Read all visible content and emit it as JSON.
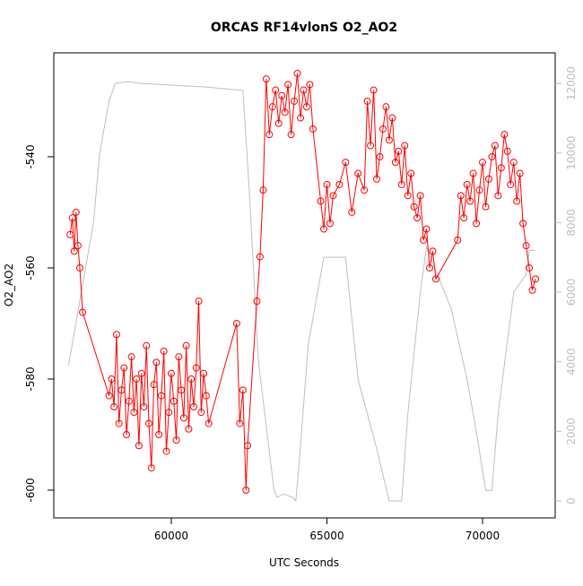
{
  "chart_data": {
    "type": "line",
    "title": "ORCAS RF14vlonS O2_AO2",
    "xlabel": "UTC Seconds",
    "ylabel": "O2_AO2",
    "xlim": [
      56225,
      72334
    ],
    "xticks": [
      60000,
      65000,
      70000
    ],
    "ylim": [
      -605,
      -521.3
    ],
    "yticks": [
      -600,
      -580,
      -560,
      -540
    ],
    "y2lim": [
      -489,
      12876
    ],
    "y2ticks": [
      0,
      2000,
      4000,
      6000,
      8000,
      10000,
      12000
    ],
    "series": [
      {
        "color": "#ff0000",
        "axis": "y",
        "markers": true,
        "x": [
          56750,
          56820,
          56880,
          56940,
          57000,
          57060,
          57150,
          58000,
          58080,
          58160,
          58240,
          58320,
          58400,
          58480,
          58560,
          58640,
          58720,
          58800,
          58880,
          58960,
          59040,
          59120,
          59200,
          59280,
          59360,
          59440,
          59520,
          59600,
          59680,
          59760,
          59840,
          59920,
          60000,
          60080,
          60160,
          60240,
          60320,
          60400,
          60480,
          60560,
          60640,
          60720,
          60800,
          60880,
          60960,
          61040,
          61120,
          61200,
          62100,
          62200,
          62300,
          62400,
          62450,
          62750,
          62850,
          62950,
          63050,
          63150,
          63250,
          63350,
          63450,
          63550,
          63650,
          63750,
          63850,
          63950,
          64050,
          64150,
          64250,
          64350,
          64450,
          64550,
          64800,
          64900,
          65000,
          65100,
          65200,
          65400,
          65600,
          65800,
          66000,
          66200,
          66300,
          66400,
          66500,
          66600,
          66700,
          66800,
          66900,
          67000,
          67100,
          67200,
          67300,
          67400,
          67500,
          67600,
          67700,
          67800,
          67900,
          68000,
          68100,
          68200,
          68300,
          68400,
          68500,
          69200,
          69300,
          69400,
          69500,
          69600,
          69700,
          69800,
          69900,
          70000,
          70100,
          70200,
          70300,
          70400,
          70500,
          70600,
          70700,
          70800,
          70900,
          71000,
          71100,
          71200,
          71300,
          71400,
          71500,
          71600,
          71700
        ],
        "values": [
          -554,
          -551,
          -557,
          -550,
          -556,
          -560,
          -568,
          -583,
          -580,
          -585,
          -572,
          -588,
          -582,
          -578,
          -590,
          -584,
          -576,
          -586,
          -580,
          -592,
          -579,
          -585,
          -574,
          -588,
          -596,
          -581,
          -577,
          -590,
          -583,
          -575,
          -593,
          -586,
          -579,
          -584,
          -591,
          -576,
          -582,
          -587,
          -574,
          -589,
          -580,
          -585,
          -578,
          -566,
          -586,
          -579,
          -583,
          -588,
          -570,
          -588,
          -582,
          -600,
          -592,
          -566,
          -558,
          -546,
          -526,
          -536,
          -531,
          -528,
          -534,
          -529,
          -532,
          -527,
          -536,
          -530,
          -525,
          -533,
          -528,
          -531,
          -527,
          -535,
          -548,
          -553,
          -545,
          -552,
          -547,
          -545,
          -541,
          -550,
          -543,
          -546,
          -530,
          -538,
          -528,
          -544,
          -540,
          -535,
          -531,
          -537,
          -533,
          -541,
          -539,
          -545,
          -538,
          -547,
          -543,
          -549,
          -551,
          -547,
          -555,
          -553,
          -560,
          -557,
          -562,
          -555,
          -547,
          -551,
          -545,
          -548,
          -543,
          -552,
          -546,
          -541,
          -549,
          -544,
          -540,
          -538,
          -547,
          -542,
          -536,
          -539,
          -545,
          -541,
          -548,
          -543,
          -552,
          -556,
          -560,
          -564,
          -562
        ]
      },
      {
        "color": "#bebebe",
        "axis": "y2",
        "markers": false,
        "x": [
          56700,
          57500,
          57700,
          58000,
          58200,
          58600,
          59000,
          60000,
          61000,
          62300,
          62500,
          62800,
          63300,
          63400,
          63600,
          63900,
          64000,
          64100,
          64400,
          64900,
          65600,
          66000,
          66600,
          67000,
          67400,
          67600,
          68000,
          68200,
          69000,
          69500,
          69800,
          70100,
          70300,
          70500,
          71000,
          71400,
          71500,
          71700
        ],
        "values": [
          3900,
          8000,
          10000,
          11500,
          12000,
          12050,
          12000,
          11950,
          11900,
          11800,
          9000,
          4000,
          300,
          100,
          200,
          100,
          0,
          1000,
          4500,
          7000,
          7000,
          3500,
          1500,
          0,
          0,
          2500,
          6000,
          7300,
          5500,
          3500,
          2000,
          300,
          300,
          2500,
          6000,
          6500,
          7200,
          7200
        ]
      }
    ]
  }
}
